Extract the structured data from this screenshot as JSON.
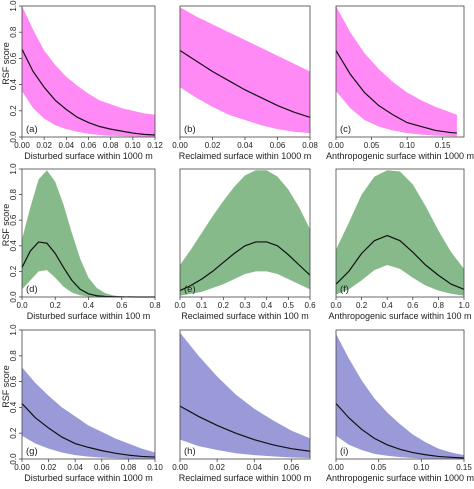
{
  "figure": {
    "ylabel": "RSF score",
    "colors": {
      "row1": "#ff8af5",
      "row2": "#87ba8a",
      "row3": "#9b9ad8",
      "line": "#111111",
      "axis": "#444444"
    }
  },
  "chart_data": [
    {
      "id": "a",
      "type": "area",
      "panel_label": "(a)",
      "xlabel": "Disturbed surface within 1000 m",
      "ylabel": "RSF score",
      "xlim": [
        0,
        0.12
      ],
      "ylim": [
        0,
        1
      ],
      "xticks": [
        "0.00",
        "0.02",
        "0.04",
        "0.06",
        "0.08",
        "0.10",
        "0.12"
      ],
      "yticks": [
        "0.0",
        "0.2",
        "0.4",
        "0.6",
        "0.8",
        "1.0"
      ],
      "x": [
        0,
        0.01,
        0.02,
        0.03,
        0.04,
        0.05,
        0.06,
        0.07,
        0.08,
        0.09,
        0.1,
        0.11,
        0.12
      ],
      "mean": [
        0.67,
        0.5,
        0.38,
        0.28,
        0.21,
        0.15,
        0.11,
        0.08,
        0.06,
        0.045,
        0.03,
        0.02,
        0.015
      ],
      "lower": [
        0.35,
        0.22,
        0.14,
        0.09,
        0.06,
        0.04,
        0.025,
        0.015,
        0.01,
        0.007,
        0.005,
        0.003,
        0.002
      ],
      "upper": [
        1.0,
        0.82,
        0.66,
        0.55,
        0.46,
        0.39,
        0.33,
        0.28,
        0.25,
        0.22,
        0.2,
        0.18,
        0.17
      ]
    },
    {
      "id": "b",
      "type": "area",
      "panel_label": "(b)",
      "xlabel": "Reclaimed surface within 1000 m",
      "ylabel": "",
      "xlim": [
        0,
        0.08
      ],
      "ylim": [
        0,
        1
      ],
      "xticks": [
        "0.00",
        "0.02",
        "0.04",
        "0.06",
        "0.08"
      ],
      "yticks": [],
      "x": [
        0,
        0.01,
        0.02,
        0.03,
        0.04,
        0.05,
        0.06,
        0.07,
        0.08
      ],
      "mean": [
        0.66,
        0.58,
        0.5,
        0.43,
        0.36,
        0.3,
        0.24,
        0.19,
        0.15
      ],
      "lower": [
        0.38,
        0.3,
        0.23,
        0.17,
        0.13,
        0.09,
        0.06,
        0.04,
        0.03
      ],
      "upper": [
        0.99,
        0.92,
        0.86,
        0.8,
        0.74,
        0.68,
        0.62,
        0.56,
        0.5
      ]
    },
    {
      "id": "c",
      "type": "area",
      "panel_label": "(c)",
      "xlabel": "Anthropogenic surface within 1000 m",
      "ylabel": "",
      "xlim": [
        0,
        0.18
      ],
      "ylim": [
        0,
        1
      ],
      "xticks": [
        "0.00",
        "0.05",
        "0.10",
        "0.15"
      ],
      "yticks": [],
      "x": [
        0,
        0.02,
        0.04,
        0.06,
        0.08,
        0.1,
        0.12,
        0.14,
        0.16,
        0.17
      ],
      "mean": [
        0.66,
        0.48,
        0.34,
        0.24,
        0.17,
        0.11,
        0.08,
        0.05,
        0.035,
        0.03
      ],
      "lower": [
        0.35,
        0.22,
        0.13,
        0.08,
        0.05,
        0.03,
        0.018,
        0.011,
        0.007,
        0.005
      ],
      "upper": [
        1.0,
        0.8,
        0.64,
        0.52,
        0.42,
        0.34,
        0.28,
        0.23,
        0.19,
        0.17
      ]
    },
    {
      "id": "d",
      "type": "area",
      "panel_label": "(d)",
      "xlabel": "Disturbed surface within 100 m",
      "ylabel": "RSF score",
      "xlim": [
        0,
        0.8
      ],
      "ylim": [
        0,
        1
      ],
      "xticks": [
        "0.0",
        "0.2",
        "0.4",
        "0.6",
        "0.8"
      ],
      "yticks": [
        "0.0",
        "0.2",
        "0.4",
        "0.6",
        "0.8",
        "1.0"
      ],
      "x": [
        0,
        0.05,
        0.1,
        0.15,
        0.2,
        0.25,
        0.3,
        0.35,
        0.4,
        0.45,
        0.5,
        0.55,
        0.6,
        0.7,
        0.8
      ],
      "mean": [
        0.23,
        0.36,
        0.43,
        0.42,
        0.34,
        0.23,
        0.13,
        0.06,
        0.025,
        0.01,
        0.004,
        0.002,
        0.001,
        0,
        0
      ],
      "lower": [
        0.06,
        0.13,
        0.2,
        0.21,
        0.15,
        0.08,
        0.035,
        0.013,
        0.004,
        0.001,
        0,
        0,
        0,
        0,
        0
      ],
      "upper": [
        0.45,
        0.7,
        0.92,
        0.99,
        0.9,
        0.72,
        0.5,
        0.3,
        0.15,
        0.07,
        0.03,
        0.012,
        0.005,
        0.001,
        0
      ]
    },
    {
      "id": "e",
      "type": "area",
      "panel_label": "(e)",
      "xlabel": "Reclaimed surface within 100 m",
      "ylabel": "",
      "xlim": [
        0,
        0.6
      ],
      "ylim": [
        0,
        1
      ],
      "xticks": [
        "0.0",
        "0.1",
        "0.2",
        "0.3",
        "0.4",
        "0.5",
        "0.6"
      ],
      "yticks": [],
      "x": [
        0,
        0.05,
        0.1,
        0.15,
        0.2,
        0.25,
        0.3,
        0.35,
        0.4,
        0.45,
        0.5,
        0.55,
        0.6
      ],
      "mean": [
        0.05,
        0.09,
        0.14,
        0.2,
        0.27,
        0.34,
        0.4,
        0.43,
        0.43,
        0.4,
        0.33,
        0.25,
        0.17
      ],
      "lower": [
        0.01,
        0.025,
        0.04,
        0.07,
        0.1,
        0.14,
        0.18,
        0.2,
        0.2,
        0.18,
        0.14,
        0.1,
        0.06
      ],
      "upper": [
        0.25,
        0.37,
        0.5,
        0.63,
        0.75,
        0.86,
        0.95,
        0.99,
        0.99,
        0.94,
        0.84,
        0.7,
        0.53
      ]
    },
    {
      "id": "f",
      "type": "area",
      "panel_label": "(f)",
      "xlabel": "Anthropogenic surface within 100 m",
      "ylabel": "",
      "xlim": [
        0,
        1.0
      ],
      "ylim": [
        0,
        1
      ],
      "xticks": [
        "0.0",
        "0.2",
        "0.4",
        "0.6",
        "0.8",
        "1.0"
      ],
      "yticks": [],
      "x": [
        0,
        0.1,
        0.2,
        0.3,
        0.4,
        0.5,
        0.6,
        0.7,
        0.8,
        0.9,
        1.0
      ],
      "mean": [
        0.1,
        0.2,
        0.34,
        0.44,
        0.48,
        0.44,
        0.35,
        0.25,
        0.17,
        0.1,
        0.06
      ],
      "lower": [
        0.02,
        0.06,
        0.13,
        0.21,
        0.25,
        0.22,
        0.15,
        0.09,
        0.05,
        0.025,
        0.01
      ],
      "upper": [
        0.37,
        0.58,
        0.8,
        0.94,
        0.99,
        0.98,
        0.88,
        0.71,
        0.52,
        0.35,
        0.22
      ]
    },
    {
      "id": "g",
      "type": "area",
      "panel_label": "(g)",
      "xlabel": "Disturbed surface within 1000 m",
      "ylabel": "RSF score",
      "xlim": [
        0,
        0.1
      ],
      "ylim": [
        0,
        1
      ],
      "xticks": [
        "0.00",
        "0.02",
        "0.04",
        "0.06",
        "0.08",
        "0.10"
      ],
      "yticks": [
        "0.0",
        "0.2",
        "0.4",
        "0.6",
        "0.8",
        "1.0"
      ],
      "x": [
        0,
        0.01,
        0.02,
        0.03,
        0.04,
        0.05,
        0.06,
        0.07,
        0.08,
        0.09,
        0.1
      ],
      "mean": [
        0.43,
        0.32,
        0.24,
        0.17,
        0.12,
        0.09,
        0.065,
        0.045,
        0.03,
        0.02,
        0.015
      ],
      "lower": [
        0.18,
        0.12,
        0.08,
        0.05,
        0.03,
        0.018,
        0.011,
        0.007,
        0.004,
        0.002,
        0.001
      ],
      "upper": [
        0.71,
        0.59,
        0.49,
        0.4,
        0.33,
        0.26,
        0.21,
        0.16,
        0.12,
        0.08,
        0.05
      ]
    },
    {
      "id": "h",
      "type": "area",
      "panel_label": "(h)",
      "xlabel": "Reclaimed surface within 1000 m",
      "ylabel": "",
      "xlim": [
        0,
        0.07
      ],
      "ylim": [
        0,
        1
      ],
      "xticks": [
        "0.00",
        "0.02",
        "0.04",
        "0.06"
      ],
      "yticks": [],
      "x": [
        0,
        0.01,
        0.02,
        0.03,
        0.04,
        0.05,
        0.06,
        0.07
      ],
      "mean": [
        0.41,
        0.33,
        0.26,
        0.2,
        0.15,
        0.11,
        0.08,
        0.06
      ],
      "lower": [
        0.15,
        0.1,
        0.07,
        0.045,
        0.03,
        0.02,
        0.012,
        0.008
      ],
      "upper": [
        0.98,
        0.8,
        0.64,
        0.5,
        0.39,
        0.3,
        0.22,
        0.16
      ]
    },
    {
      "id": "i",
      "type": "area",
      "panel_label": "(i)",
      "xlabel": "Anthropogenic surface within 1000 m",
      "ylabel": "",
      "xlim": [
        0,
        0.15
      ],
      "ylim": [
        0,
        1
      ],
      "xticks": [
        "0.00",
        "0.05",
        "0.10",
        "0.15"
      ],
      "yticks": [],
      "x": [
        0,
        0.015,
        0.03,
        0.045,
        0.06,
        0.075,
        0.09,
        0.105,
        0.12,
        0.135,
        0.15
      ],
      "mean": [
        0.43,
        0.32,
        0.23,
        0.16,
        0.11,
        0.075,
        0.05,
        0.033,
        0.02,
        0.013,
        0.008
      ],
      "lower": [
        0.18,
        0.11,
        0.07,
        0.04,
        0.025,
        0.015,
        0.008,
        0.004,
        0.002,
        0.001,
        0.0005
      ],
      "upper": [
        0.97,
        0.78,
        0.61,
        0.47,
        0.36,
        0.27,
        0.19,
        0.13,
        0.08,
        0.05,
        0.03
      ]
    }
  ]
}
